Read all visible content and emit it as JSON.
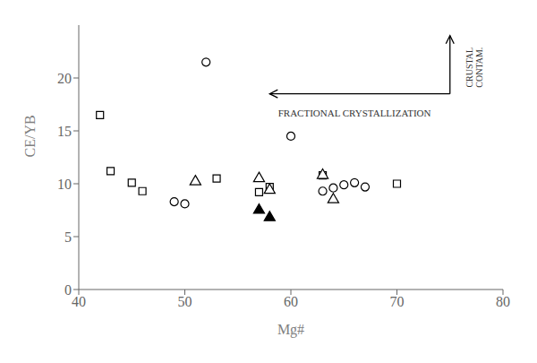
{
  "chart_data": {
    "type": "scatter",
    "xlabel": "Mg#",
    "ylabel": "CE/YB",
    "xlim": [
      40,
      80
    ],
    "ylim": [
      0,
      25
    ],
    "xticks": [
      40,
      50,
      60,
      70,
      80
    ],
    "yticks": [
      0,
      5,
      10,
      15,
      20
    ],
    "grid": false,
    "series": [
      {
        "type": "scatter",
        "marker": "open_circle",
        "color": "#000000",
        "x": [
          52,
          49,
          50,
          60,
          63,
          64,
          65,
          66,
          67
        ],
        "values": [
          21.5,
          8.3,
          8.1,
          14.5,
          9.3,
          9.6,
          9.9,
          10.1,
          9.7
        ]
      },
      {
        "type": "scatter",
        "marker": "open_square",
        "color": "#000000",
        "x": [
          42,
          43,
          45,
          46,
          53,
          57,
          58,
          63,
          70
        ],
        "values": [
          16.5,
          11.2,
          10.1,
          9.3,
          10.5,
          9.2,
          9.7,
          10.8,
          10.0
        ]
      },
      {
        "type": "scatter",
        "marker": "open_triangle",
        "color": "#000000",
        "x": [
          51,
          57,
          58,
          63,
          64
        ],
        "values": [
          10.2,
          10.5,
          9.4,
          10.8,
          8.5
        ]
      },
      {
        "type": "scatter",
        "marker": "filled_triangle",
        "color": "#000000",
        "x": [
          57,
          58
        ],
        "values": [
          7.5,
          6.8
        ]
      }
    ],
    "arrows": [
      {
        "from": [
          75,
          18.5
        ],
        "to": [
          58,
          18.5
        ]
      },
      {
        "from": [
          75,
          18.5
        ],
        "to": [
          75,
          24.0
        ]
      }
    ],
    "annotations": [
      {
        "text": "FRACTIONAL CRYSTALLIZATION",
        "x": 66,
        "y": 17.0,
        "orientation": "horizontal"
      },
      {
        "text": "CRUSTAL\nCONTAM.",
        "x": 76.2,
        "y": 21.0,
        "orientation": "vertical"
      }
    ]
  }
}
